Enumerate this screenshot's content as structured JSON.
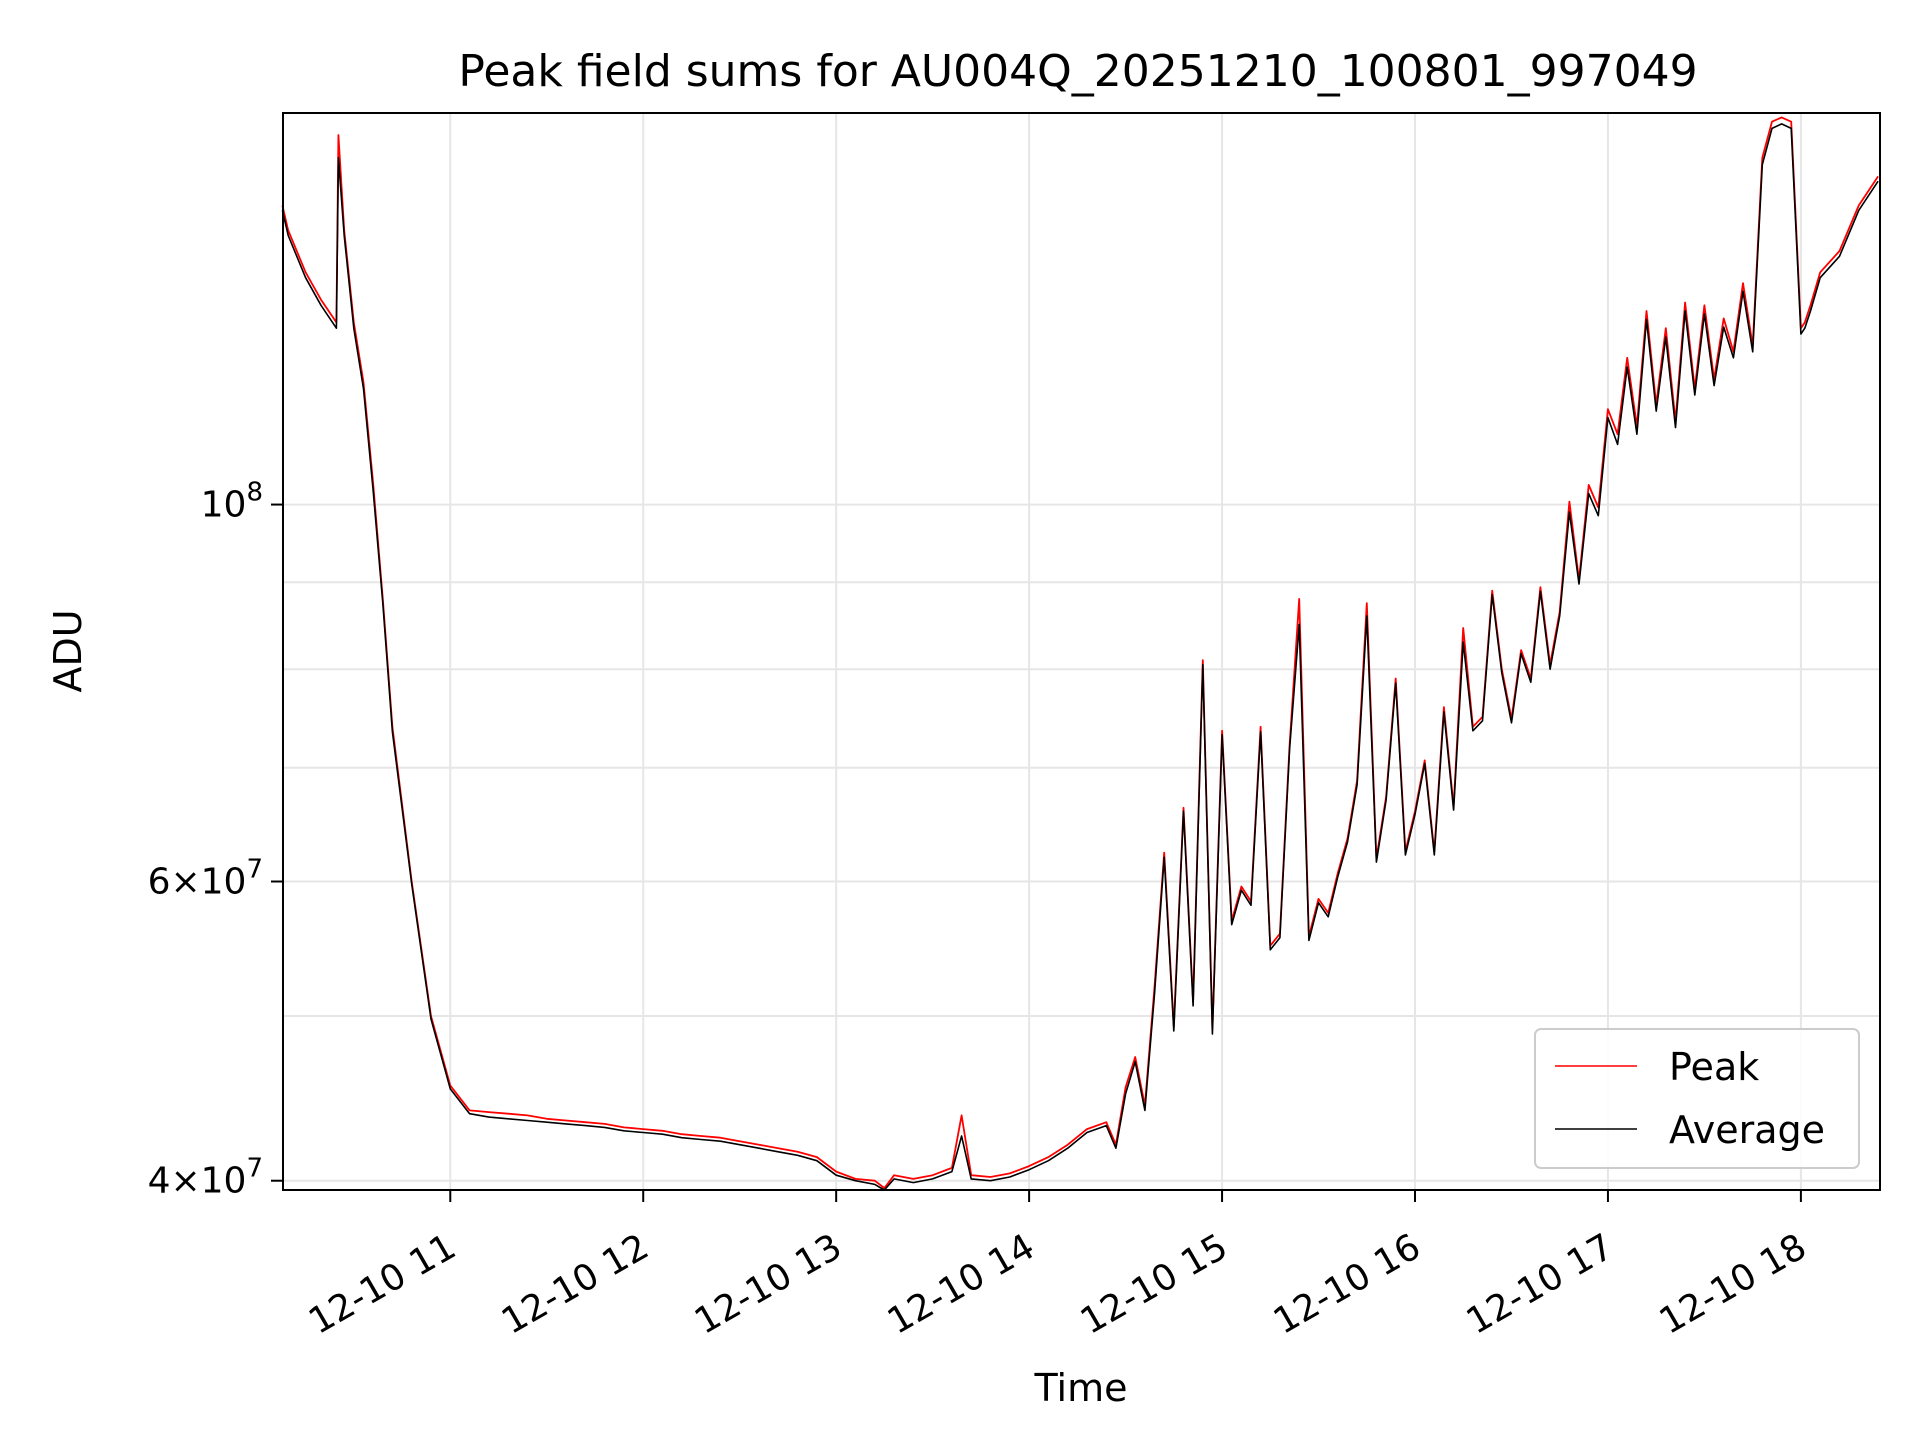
{
  "chart_data": {
    "type": "line",
    "title": "Peak field sums for AU004Q_20251210_100801_997049",
    "xlabel": "Time",
    "ylabel": "ADU",
    "yscale": "log",
    "ylim": [
      39500000,
      170000000
    ],
    "xlim": [
      "2025-12-10 10:08",
      "2025-12-10 18:15"
    ],
    "x_tick_labels": [
      "12-10 11",
      "12-10 12",
      "12-10 13",
      "12-10 14",
      "12-10 15",
      "12-10 16",
      "12-10 17",
      "12-10 18"
    ],
    "x_tick_hours": [
      11,
      12,
      13,
      14,
      15,
      16,
      17,
      18
    ],
    "y_tick_labels": [
      {
        "base": "10",
        "exp": "8",
        "value": 100000000
      },
      {
        "mant": "6",
        "base": "10",
        "exp": "7",
        "value": 60000000
      },
      {
        "mant": "4",
        "base": "10",
        "exp": "7",
        "value": 40000000
      }
    ],
    "y_minor_gridlines": [
      50000000,
      70000000,
      80000000,
      90000000
    ],
    "grid": true,
    "legend": {
      "position": "bottom-right",
      "entries": [
        {
          "label": "Peak",
          "color": "#ff0000"
        },
        {
          "label": "Average",
          "color": "#000000"
        }
      ]
    },
    "series": [
      {
        "name": "Peak",
        "color": "#ff0000",
        "x_hours": [
          10.13,
          10.16,
          10.25,
          10.33,
          10.41,
          10.42,
          10.45,
          10.5,
          10.55,
          10.6,
          10.65,
          10.7,
          10.8,
          10.9,
          11.0,
          11.1,
          11.2,
          11.3,
          11.4,
          11.5,
          11.6,
          11.7,
          11.8,
          11.9,
          12.0,
          12.1,
          12.2,
          12.3,
          12.4,
          12.5,
          12.6,
          12.7,
          12.8,
          12.9,
          13.0,
          13.1,
          13.2,
          13.25,
          13.3,
          13.4,
          13.5,
          13.6,
          13.65,
          13.7,
          13.8,
          13.9,
          14.0,
          14.1,
          14.2,
          14.3,
          14.4,
          14.45,
          14.5,
          14.55,
          14.6,
          14.65,
          14.7,
          14.75,
          14.8,
          14.85,
          14.9,
          14.95,
          15.0,
          15.05,
          15.1,
          15.15,
          15.2,
          15.25,
          15.3,
          15.35,
          15.4,
          15.45,
          15.5,
          15.55,
          15.6,
          15.65,
          15.7,
          15.75,
          15.8,
          15.85,
          15.9,
          15.95,
          16.0,
          16.05,
          16.1,
          16.15,
          16.2,
          16.25,
          16.3,
          16.35,
          16.4,
          16.45,
          16.5,
          16.55,
          16.6,
          16.65,
          16.7,
          16.75,
          16.8,
          16.85,
          16.9,
          16.95,
          17.0,
          17.05,
          17.1,
          17.15,
          17.2,
          17.25,
          17.3,
          17.35,
          17.4,
          17.45,
          17.5,
          17.55,
          17.6,
          17.65,
          17.7,
          17.75,
          17.8,
          17.85,
          17.9,
          17.95,
          18.0,
          18.02,
          18.05,
          18.1,
          18.2,
          18.3,
          18.4
        ],
        "values": [
          150000000,
          145000000,
          137000000,
          132000000,
          128000000,
          165000000,
          145000000,
          128000000,
          118000000,
          103000000,
          88000000,
          74000000,
          60000000,
          50000000,
          45500000,
          44000000,
          43900000,
          43800000,
          43700000,
          43500000,
          43400000,
          43300000,
          43200000,
          43000000,
          42900000,
          42800000,
          42600000,
          42500000,
          42400000,
          42200000,
          42000000,
          41800000,
          41600000,
          41300000,
          40500000,
          40100000,
          40000000,
          39600000,
          40300000,
          40100000,
          40300000,
          40700000,
          43700000,
          40300000,
          40200000,
          40400000,
          40800000,
          41300000,
          42000000,
          42900000,
          43300000,
          42000000,
          45400000,
          47300000,
          44300000,
          52000000,
          62400000,
          49300000,
          66300000,
          51000000,
          81000000,
          49100000,
          73600000,
          56900000,
          59600000,
          58400000,
          74000000,
          55000000,
          55900000,
          72200000,
          88000000,
          55700000,
          58600000,
          57500000,
          60700000,
          63600000,
          68800000,
          87500000,
          61900000,
          67300000,
          79000000,
          62500000,
          66000000,
          70700000,
          62500000,
          76000000,
          66400000,
          84600000,
          74000000,
          75000000,
          89000000,
          80000000,
          74800000,
          82100000,
          79000000,
          89400000,
          80500000,
          86500000,
          100400000,
          90300000,
          102700000,
          99600000,
          113800000,
          110000000,
          122000000,
          111200000,
          130000000,
          114500000,
          127000000,
          112000000,
          131500000,
          117000000,
          131000000,
          118500000,
          128700000,
          123000000,
          135000000,
          124000000,
          160000000,
          168000000,
          169000000,
          168000000,
          127000000,
          128000000,
          131000000,
          137000000,
          141000000,
          150000000,
          156000000
        ]
      },
      {
        "name": "Average",
        "color": "#000000",
        "x_hours": [
          10.13,
          10.16,
          10.25,
          10.33,
          10.41,
          10.42,
          10.45,
          10.5,
          10.55,
          10.6,
          10.65,
          10.7,
          10.8,
          10.9,
          11.0,
          11.1,
          11.2,
          11.3,
          11.4,
          11.5,
          11.6,
          11.7,
          11.8,
          11.9,
          12.0,
          12.1,
          12.2,
          12.3,
          12.4,
          12.5,
          12.6,
          12.7,
          12.8,
          12.9,
          13.0,
          13.1,
          13.2,
          13.25,
          13.3,
          13.4,
          13.5,
          13.6,
          13.65,
          13.7,
          13.8,
          13.9,
          14.0,
          14.1,
          14.2,
          14.3,
          14.4,
          14.45,
          14.5,
          14.55,
          14.6,
          14.65,
          14.7,
          14.75,
          14.8,
          14.85,
          14.9,
          14.95,
          15.0,
          15.05,
          15.1,
          15.15,
          15.2,
          15.25,
          15.3,
          15.35,
          15.4,
          15.45,
          15.5,
          15.55,
          15.6,
          15.65,
          15.7,
          15.75,
          15.8,
          15.85,
          15.9,
          15.95,
          16.0,
          16.05,
          16.1,
          16.15,
          16.2,
          16.25,
          16.3,
          16.35,
          16.4,
          16.45,
          16.5,
          16.55,
          16.6,
          16.65,
          16.7,
          16.75,
          16.8,
          16.85,
          16.9,
          16.95,
          17.0,
          17.05,
          17.1,
          17.15,
          17.2,
          17.25,
          17.3,
          17.35,
          17.4,
          17.45,
          17.5,
          17.55,
          17.6,
          17.65,
          17.7,
          17.75,
          17.8,
          17.85,
          17.9,
          17.95,
          18.0,
          18.02,
          18.05,
          18.1,
          18.2,
          18.3,
          18.4
        ],
        "values": [
          149000000,
          144000000,
          136000000,
          131000000,
          127000000,
          160000000,
          144000000,
          127000000,
          117000000,
          102000000,
          87500000,
          73500000,
          59800000,
          49800000,
          45300000,
          43800000,
          43600000,
          43500000,
          43400000,
          43300000,
          43200000,
          43100000,
          43000000,
          42800000,
          42700000,
          42600000,
          42400000,
          42300000,
          42200000,
          42000000,
          41800000,
          41600000,
          41400000,
          41100000,
          40300000,
          40000000,
          39800000,
          39500000,
          40100000,
          39900000,
          40100000,
          40500000,
          42500000,
          40100000,
          40000000,
          40200000,
          40600000,
          41100000,
          41800000,
          42700000,
          43100000,
          41800000,
          45000000,
          47000000,
          44000000,
          51500000,
          62000000,
          49000000,
          66000000,
          50700000,
          80500000,
          48800000,
          73200000,
          56600000,
          59300000,
          58100000,
          73500000,
          54700000,
          55600000,
          71800000,
          85000000,
          55400000,
          58300000,
          57200000,
          60400000,
          63300000,
          68400000,
          86000000,
          61600000,
          67000000,
          78500000,
          62200000,
          65700000,
          70400000,
          62200000,
          75500000,
          66100000,
          83000000,
          73600000,
          74600000,
          88500000,
          79600000,
          74400000,
          81700000,
          78600000,
          88900000,
          80000000,
          86000000,
          99000000,
          89800000,
          101500000,
          98500000,
          112500000,
          108500000,
          120500000,
          110000000,
          128500000,
          113500000,
          125500000,
          111000000,
          130000000,
          116000000,
          129500000,
          117500000,
          127200000,
          122000000,
          133500000,
          123000000,
          158500000,
          166500000,
          167500000,
          166500000,
          126000000,
          127000000,
          130000000,
          136000000,
          140000000,
          149000000,
          155000000
        ]
      }
    ]
  }
}
